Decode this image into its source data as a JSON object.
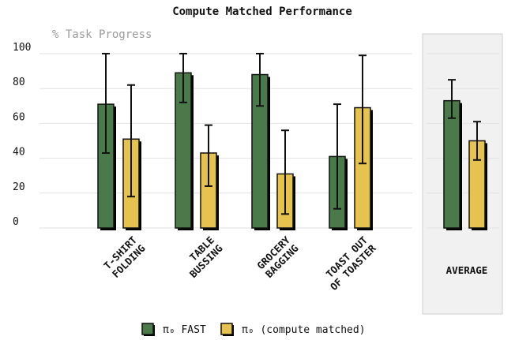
{
  "chart_data": {
    "type": "bar",
    "title": "Compute Matched Performance",
    "ylabel": "% Task Progress",
    "ylim": [
      0,
      100
    ],
    "yticks": [
      0,
      20,
      40,
      60,
      80,
      100
    ],
    "categories": [
      [
        "T-SHIRT",
        "FOLDING"
      ],
      [
        "TABLE",
        "BUSSING"
      ],
      [
        "GROCERY",
        "BAGGING"
      ],
      [
        "TOAST OUT",
        "OF TOASTER"
      ],
      [
        "AVERAGE"
      ]
    ],
    "series": [
      {
        "name": "π₀ FAST",
        "color": "#4a7a4a",
        "values": [
          71,
          89,
          88,
          41,
          73
        ],
        "err_low": [
          43,
          72,
          70,
          11,
          63
        ],
        "err_high": [
          100,
          100,
          100,
          71,
          85
        ]
      },
      {
        "name": "π₀ (compute matched)",
        "color": "#e6c24e",
        "values": [
          51,
          43,
          31,
          69,
          50
        ],
        "err_low": [
          18,
          24,
          8,
          37,
          39
        ],
        "err_high": [
          82,
          59,
          56,
          99,
          61
        ]
      }
    ],
    "grid": true,
    "legend": "bottom"
  }
}
